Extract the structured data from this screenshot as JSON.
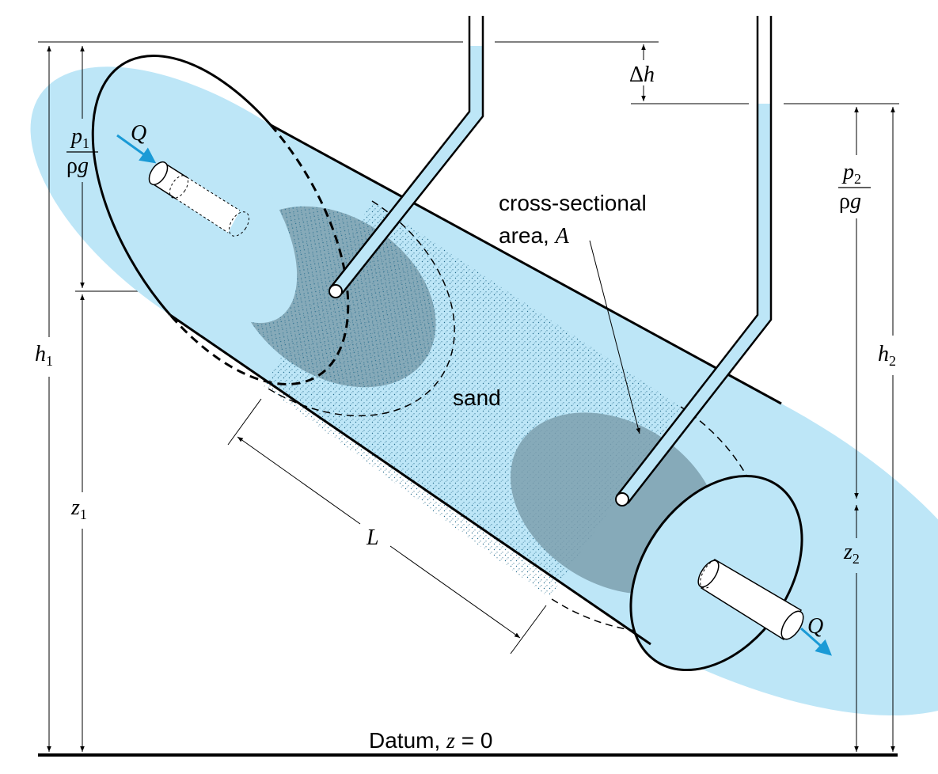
{
  "labels": {
    "flow_in": "Q",
    "flow_out": "Q",
    "p1_num": "p",
    "p1_sub": "1",
    "p1_den_rho": "ρ",
    "p1_den_g": "g",
    "p2_num": "p",
    "p2_sub": "2",
    "p2_den_rho": "ρ",
    "p2_den_g": "g",
    "h1": "h",
    "h1_sub": "1",
    "h2": "h",
    "h2_sub": "2",
    "z1": "z",
    "z1_sub": "1",
    "z2": "z",
    "z2_sub": "2",
    "delta_h_sym": "Δ",
    "delta_h_var": "h",
    "length": "L",
    "area_line1": "cross-sectional",
    "area_line2": "area, ",
    "area_var": "A",
    "sand": "sand",
    "datum_prefix": "Datum, ",
    "datum_var": "z",
    "datum_suffix": " = 0"
  },
  "colors": {
    "water": "#bde6f7",
    "section": "#7d9fae",
    "flow_arrow": "#1a9ad6",
    "outline": "#000000",
    "sand_dots": "#2a6f8f"
  }
}
